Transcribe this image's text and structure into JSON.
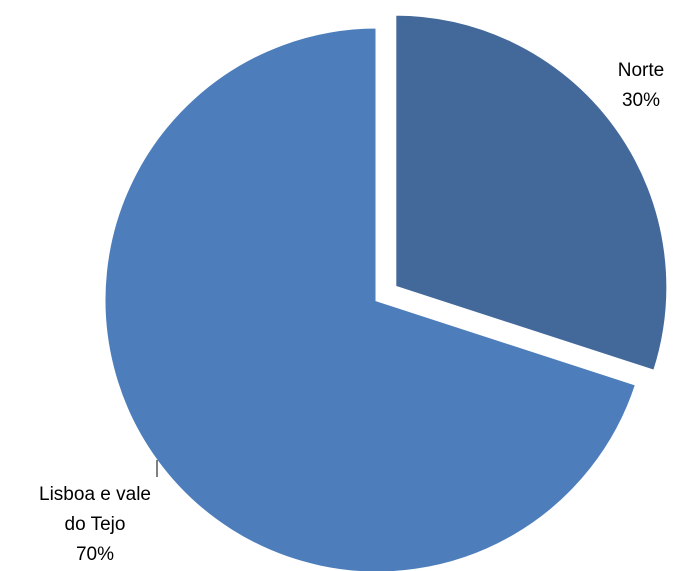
{
  "chart_data": {
    "type": "pie",
    "title": "",
    "slices": [
      {
        "label": "Norte",
        "percent_label": "30%",
        "value": 30,
        "color": "#43699B",
        "exploded": true
      },
      {
        "label": "Lisboa e vale do Tejo",
        "percent_label": "70%",
        "value": 70,
        "color": "#4D7EBB",
        "exploded": false
      }
    ],
    "legend": "none",
    "data_labels": [
      {
        "lines": [
          "Norte",
          "30%"
        ]
      },
      {
        "lines": [
          "Lisboa e vale",
          "do Tejo",
          "70%"
        ]
      }
    ]
  }
}
